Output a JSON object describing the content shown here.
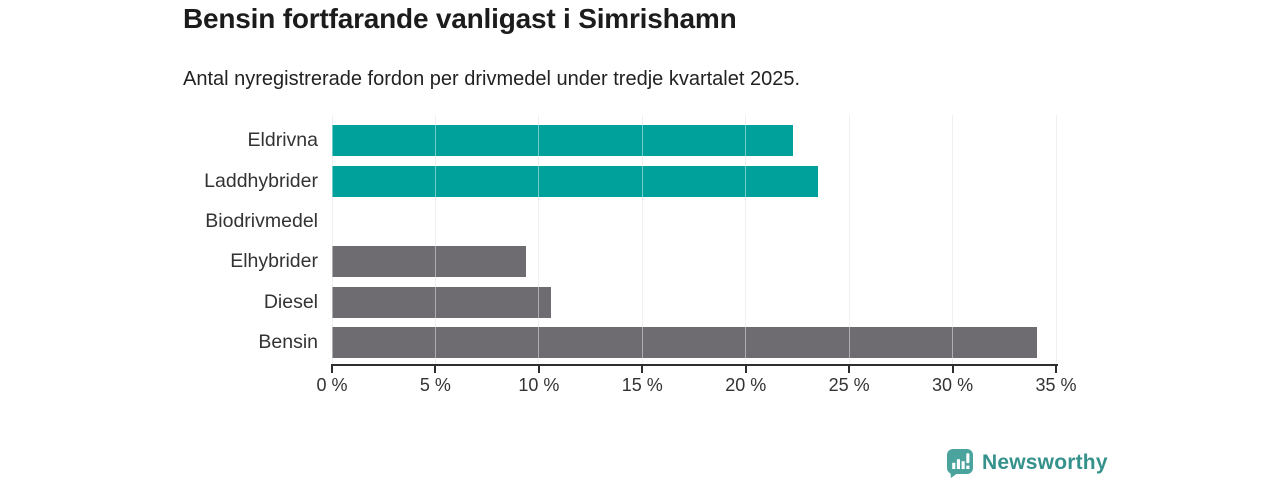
{
  "chart_data": {
    "type": "bar",
    "orientation": "horizontal",
    "title": "Bensin fortfarande vanligast i Simrishamn",
    "subtitle": "Antal nyregistrerade fordon per drivmedel under tredje kvartalet 2025.",
    "categories": [
      "Eldrivna",
      "Laddhybrider",
      "Biodrivmedel",
      "Elhybrider",
      "Diesel",
      "Bensin"
    ],
    "values": [
      22.3,
      23.5,
      0,
      9.4,
      10.6,
      34.1
    ],
    "unit": "%",
    "bar_colors": [
      "#00a19a",
      "#00a19a",
      "#00a19a",
      "#6e6b71",
      "#6e6b71",
      "#6e6b71"
    ],
    "xlim": [
      0,
      35
    ],
    "x_ticks": [
      0,
      5,
      10,
      15,
      20,
      25,
      30,
      35
    ],
    "x_tick_labels": [
      "0 %",
      "5 %",
      "10 %",
      "15 %",
      "20 %",
      "25 %",
      "30 %",
      "35 %"
    ],
    "grid": "vertical",
    "legend": "none",
    "accent_color": "#00a19a",
    "neutral_color": "#6e6b71"
  },
  "footer": {
    "brand": "Newsworthy",
    "brand_text_color": "#35918b",
    "icon": "newsworthy-bar-chart-bubble-icon",
    "icon_color": "#4aa39c"
  },
  "colors": {
    "background": "#ffffff",
    "gridline": "#e3e3e3",
    "axis": "#2e2e2e",
    "title_text": "#1c1c1c",
    "label_text": "#333333"
  }
}
